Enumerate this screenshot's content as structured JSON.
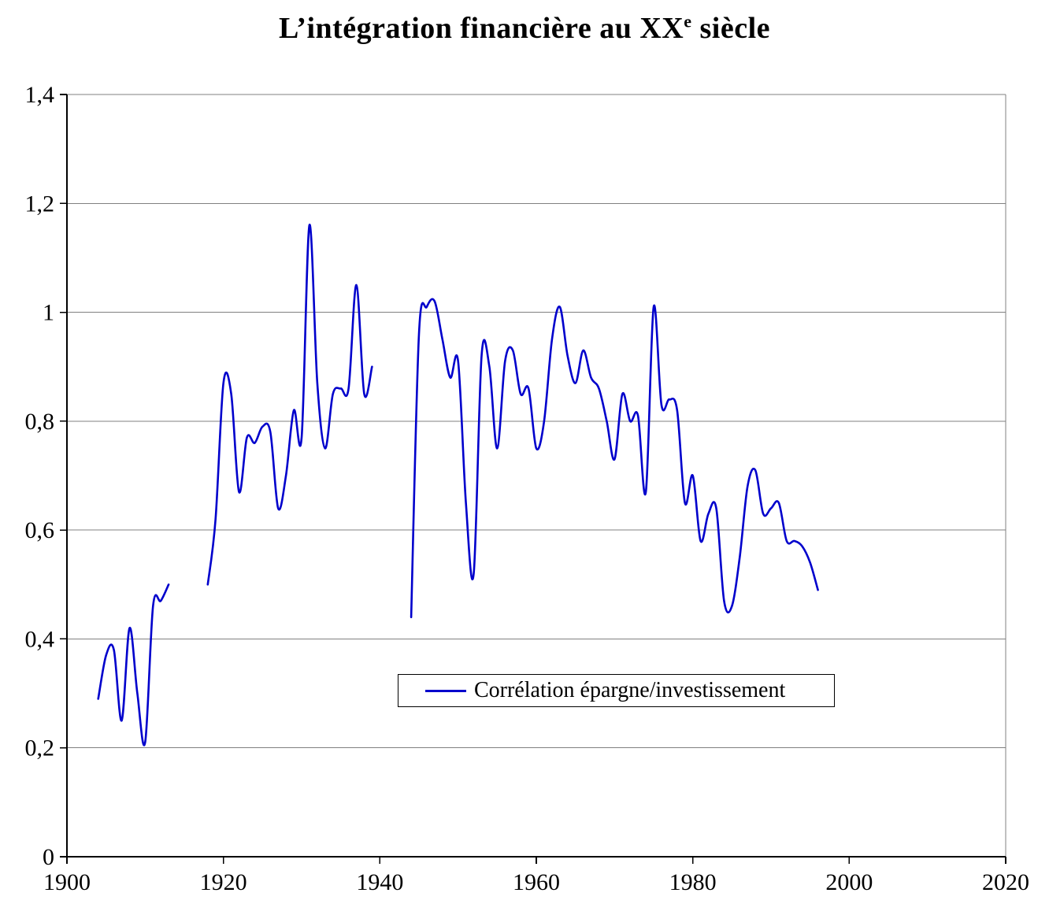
{
  "title": {
    "main": "L’intégration financière au XX",
    "superscript": "e",
    "tail": " siècle"
  },
  "legend": {
    "label": "Corrélation épargne/investissement"
  },
  "colors": {
    "line": "#0000cc",
    "grid": "#808080",
    "axis": "#000000"
  },
  "chart_data": {
    "type": "line",
    "title": "L’intégration financière au XXe siècle",
    "xlabel": "",
    "ylabel": "",
    "xlim": [
      1900,
      2020
    ],
    "ylim": [
      0,
      1.4
    ],
    "x_ticks": [
      1900,
      1920,
      1940,
      1960,
      1980,
      2000,
      2020
    ],
    "y_ticks": [
      0,
      0.2,
      0.4,
      0.6,
      0.8,
      1.0,
      1.2,
      1.4
    ],
    "y_tick_labels": [
      "0",
      "0,2",
      "0,4",
      "0,6",
      "0,8",
      "1",
      "1,2",
      "1,4"
    ],
    "grid": "horizontal",
    "legend_position": "inside-bottom-center",
    "x": [
      1904,
      1905,
      1906,
      1907,
      1908,
      1909,
      1910,
      1911,
      1912,
      1913,
      1914,
      1915,
      1916,
      1917,
      1918,
      1919,
      1920,
      1921,
      1922,
      1923,
      1924,
      1925,
      1926,
      1927,
      1928,
      1929,
      1930,
      1931,
      1932,
      1933,
      1934,
      1935,
      1936,
      1937,
      1938,
      1939,
      1940,
      1941,
      1942,
      1943,
      1944,
      1945,
      1946,
      1947,
      1948,
      1949,
      1950,
      1951,
      1952,
      1953,
      1954,
      1955,
      1956,
      1957,
      1958,
      1959,
      1960,
      1961,
      1962,
      1963,
      1964,
      1965,
      1966,
      1967,
      1968,
      1969,
      1970,
      1971,
      1972,
      1973,
      1974,
      1975,
      1976,
      1977,
      1978,
      1979,
      1980,
      1981,
      1982,
      1983,
      1984,
      1985,
      1986,
      1987,
      1988,
      1989,
      1990,
      1991,
      1992,
      1993,
      1994,
      1995,
      1996
    ],
    "series": [
      {
        "name": "Corrélation épargne/investissement",
        "color": "#0000cc",
        "values": [
          0.29,
          0.37,
          0.38,
          0.25,
          0.42,
          0.3,
          0.21,
          0.46,
          0.47,
          0.5,
          null,
          null,
          null,
          null,
          0.5,
          0.62,
          0.87,
          0.85,
          0.67,
          0.77,
          0.76,
          0.79,
          0.78,
          0.64,
          0.7,
          0.82,
          0.77,
          1.16,
          0.87,
          0.75,
          0.85,
          0.86,
          0.86,
          1.05,
          0.85,
          0.9,
          null,
          null,
          null,
          null,
          0.44,
          0.96,
          1.01,
          1.02,
          0.95,
          0.88,
          0.91,
          0.65,
          0.52,
          0.92,
          0.9,
          0.75,
          0.91,
          0.93,
          0.85,
          0.86,
          0.75,
          0.8,
          0.95,
          1.01,
          0.92,
          0.87,
          0.93,
          0.88,
          0.86,
          0.8,
          0.73,
          0.85,
          0.8,
          0.81,
          0.67,
          1.01,
          0.83,
          0.84,
          0.82,
          0.65,
          0.7,
          0.58,
          0.63,
          0.64,
          0.47,
          0.46,
          0.55,
          0.68,
          0.71,
          0.63,
          0.64,
          0.65,
          0.58,
          0.58,
          0.57,
          0.54,
          0.49
        ]
      }
    ]
  }
}
